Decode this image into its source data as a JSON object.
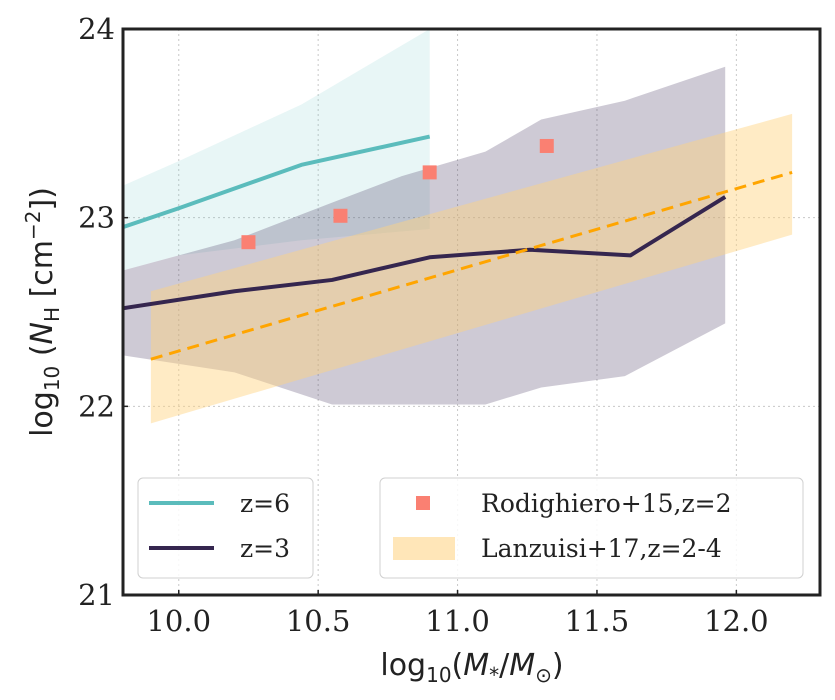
{
  "chart_data": {
    "type": "line",
    "xlabel_parts": {
      "pre": "log",
      "sub": "10",
      "open": "(",
      "m": "M",
      "msub": "*",
      "slash": "/",
      "m2": "M",
      "m2sub": "⊙",
      "close": ")"
    },
    "ylabel_parts": {
      "pre": "log",
      "sub": "10",
      "open": " (",
      "n": "N",
      "nsub": "H",
      "unit_open": " [cm",
      "sup": "−2",
      "close": "])"
    },
    "xlim": [
      9.8,
      12.3
    ],
    "ylim": [
      21,
      24
    ],
    "xticks": [
      10.0,
      10.5,
      11.0,
      11.5,
      12.0
    ],
    "xtick_labels": [
      "10.0",
      "10.5",
      "11.0",
      "11.5",
      "12.0"
    ],
    "yticks": [
      21,
      22,
      23,
      24
    ],
    "ytick_labels": [
      "21",
      "22",
      "23",
      "24"
    ],
    "grid": true,
    "bands": [
      {
        "name": "z=6 range",
        "color": "#5bbcbc",
        "opacity": 0.14,
        "x": [
          9.8,
          10.0,
          10.44,
          10.9
        ],
        "upper": [
          23.17,
          23.3,
          23.6,
          24.0
        ],
        "lower": [
          22.72,
          22.8,
          22.88,
          22.94
        ]
      },
      {
        "name": "z=3 range",
        "color": "#3b2a57",
        "opacity": 0.25,
        "x": [
          9.8,
          10.2,
          10.55,
          10.8,
          11.1,
          11.3,
          11.6,
          11.96
        ],
        "upper": [
          22.72,
          22.88,
          23.08,
          23.22,
          23.35,
          23.52,
          23.62,
          23.8
        ],
        "lower": [
          22.27,
          22.18,
          22.01,
          22.01,
          22.01,
          22.1,
          22.16,
          22.44
        ]
      },
      {
        "name": "Lanzuisi+17,z=2-4",
        "color": "#ffd27f",
        "opacity": 0.45,
        "x": [
          9.9,
          12.2
        ],
        "upper": [
          22.61,
          23.55
        ],
        "lower": [
          21.91,
          22.91
        ]
      }
    ],
    "series": [
      {
        "name": "z=6",
        "color": "#5bbcbc",
        "width": 4,
        "x": [
          9.8,
          10.0,
          10.44,
          10.9
        ],
        "y": [
          22.95,
          23.05,
          23.28,
          23.43
        ]
      },
      {
        "name": "z=3",
        "color": "#35264f",
        "width": 4,
        "x": [
          9.8,
          10.2,
          10.55,
          10.9,
          11.26,
          11.62,
          11.96
        ],
        "y": [
          22.52,
          22.61,
          22.67,
          22.79,
          22.83,
          22.8,
          23.11
        ]
      },
      {
        "name": "fit",
        "color": "#ffa500",
        "width": 3,
        "dash": "12 7",
        "x": [
          9.9,
          12.2
        ],
        "y": [
          22.25,
          23.24
        ]
      }
    ],
    "points": {
      "name": "Rodighiero+15,z=2",
      "color": "#fa8072",
      "x": [
        10.25,
        10.58,
        10.9,
        11.32
      ],
      "y": [
        22.87,
        23.01,
        23.24,
        23.38
      ]
    },
    "legends": [
      {
        "position": "lower-left",
        "entries": [
          {
            "label": "z=6",
            "kind": "line",
            "color": "#5bbcbc"
          },
          {
            "label": "z=3",
            "kind": "line",
            "color": "#35264f"
          }
        ]
      },
      {
        "position": "lower-right",
        "entries": [
          {
            "label": "Rodighiero+15,z=2",
            "kind": "square",
            "color": "#fa8072"
          },
          {
            "label": "Lanzuisi+17,z=2-4",
            "kind": "patch",
            "color": "#ffe6b8"
          }
        ]
      }
    ]
  }
}
